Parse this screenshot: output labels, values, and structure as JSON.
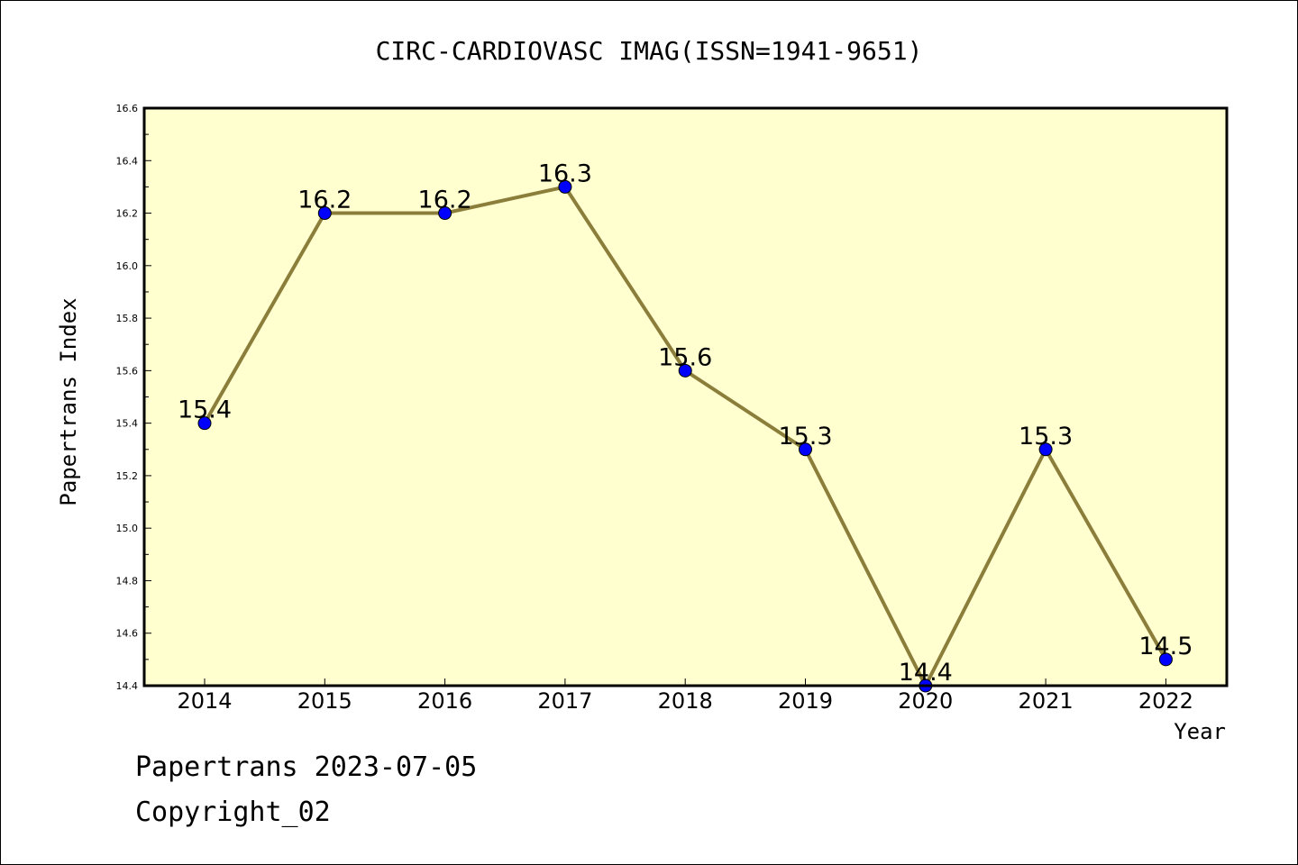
{
  "chart_data": {
    "type": "line",
    "title": "CIRC-CARDIOVASC IMAG(ISSN=1941-9651)",
    "xlabel": "Year",
    "ylabel": "Papertrans Index",
    "categories": [
      "2014",
      "2015",
      "2016",
      "2017",
      "2018",
      "2019",
      "2020",
      "2021",
      "2022"
    ],
    "series": [
      {
        "values": [
          15.4,
          16.2,
          16.2,
          16.3,
          15.6,
          15.3,
          14.4,
          15.3,
          14.5
        ],
        "data_labels": [
          "15.4",
          "16.2",
          "16.2",
          "16.3",
          "15.6",
          "15.3",
          "14.4",
          "15.3",
          "14.5"
        ]
      }
    ],
    "ylim": [
      14.4,
      16.6
    ],
    "y_ticks": [
      "14.4",
      "14.6",
      "14.8",
      "15.0",
      "15.2",
      "15.4",
      "15.6",
      "15.8",
      "16.0",
      "16.2",
      "16.4",
      "16.6"
    ],
    "grid": false,
    "legend": "none",
    "colors": {
      "plot_background": "#ffffd0",
      "line": "#8b7d3a",
      "marker": "#0000ff"
    }
  },
  "footer": {
    "line1": "Papertrans 2023-07-05",
    "line2": "Copyright_02"
  }
}
